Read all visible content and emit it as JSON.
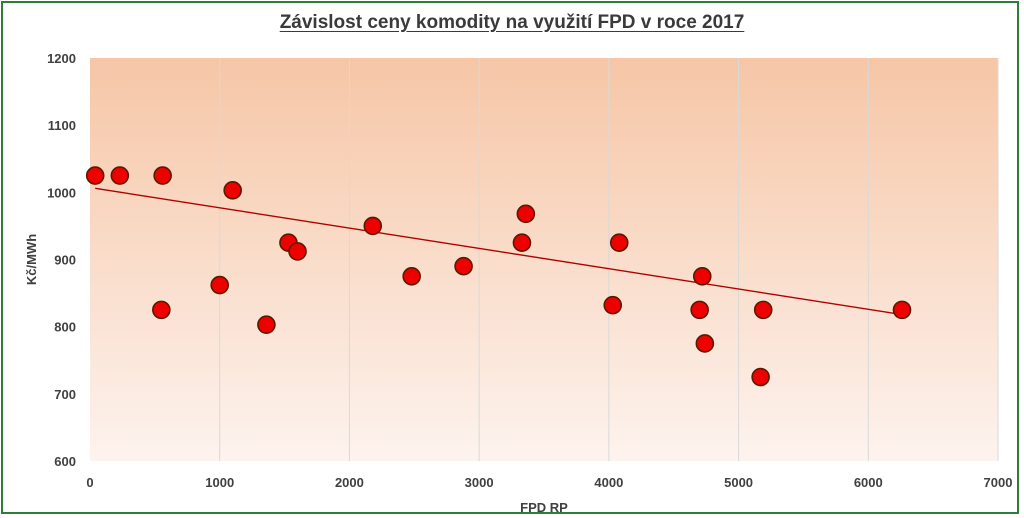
{
  "chart_data": {
    "type": "scatter",
    "title": "Závislost ceny komodity na  využití FPD v roce 2017",
    "xlabel": "FPD RP",
    "ylabel": "Kč/MWh",
    "xlim": [
      0,
      7000
    ],
    "ylim": [
      600,
      1200
    ],
    "x_ticks": [
      0,
      1000,
      2000,
      3000,
      4000,
      5000,
      6000,
      7000
    ],
    "y_ticks": [
      600,
      700,
      800,
      900,
      1000,
      1100,
      1200
    ],
    "grid": "vertical",
    "legend": "none",
    "marker_color": "#ee0000",
    "marker_edge_color": "#5a1a00",
    "trendline_color": "#b00000",
    "background_gradient": [
      "#f6c6a6",
      "#fdf3ee"
    ],
    "points": [
      {
        "x": 40,
        "y": 1025
      },
      {
        "x": 230,
        "y": 1025
      },
      {
        "x": 550,
        "y": 825
      },
      {
        "x": 560,
        "y": 1025
      },
      {
        "x": 1000,
        "y": 862
      },
      {
        "x": 1100,
        "y": 1003
      },
      {
        "x": 1360,
        "y": 803
      },
      {
        "x": 1530,
        "y": 925
      },
      {
        "x": 1600,
        "y": 912
      },
      {
        "x": 2180,
        "y": 950
      },
      {
        "x": 2480,
        "y": 875
      },
      {
        "x": 2880,
        "y": 890
      },
      {
        "x": 3330,
        "y": 925
      },
      {
        "x": 3360,
        "y": 968
      },
      {
        "x": 4030,
        "y": 832
      },
      {
        "x": 4080,
        "y": 925
      },
      {
        "x": 4700,
        "y": 825
      },
      {
        "x": 4720,
        "y": 875
      },
      {
        "x": 4740,
        "y": 775
      },
      {
        "x": 5170,
        "y": 725
      },
      {
        "x": 5190,
        "y": 825
      },
      {
        "x": 6260,
        "y": 825
      }
    ],
    "trendline": {
      "x": [
        40,
        6260
      ],
      "y": [
        1006,
        818
      ]
    }
  }
}
